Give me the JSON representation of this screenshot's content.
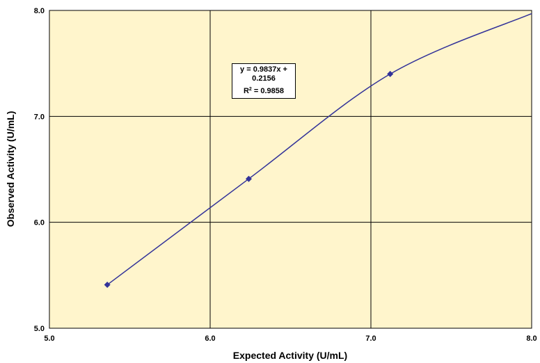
{
  "chart_data": {
    "type": "scatter",
    "title": "",
    "xlabel": "Expected Activity (U/mL)",
    "ylabel": "Observed Activity (U/mL)",
    "xlim": [
      5.0,
      8.0
    ],
    "ylim": [
      5.0,
      8.0
    ],
    "xticks": [
      "5.0",
      "6.0",
      "7.0",
      "8.0"
    ],
    "yticks": [
      "5.0",
      "6.0",
      "7.0",
      "8.0"
    ],
    "grid": true,
    "plot_background": "#FFF5CC",
    "series": [
      {
        "points": [
          {
            "x": 5.36,
            "y": 5.41
          },
          {
            "x": 6.24,
            "y": 6.41
          },
          {
            "x": 7.12,
            "y": 7.4
          }
        ],
        "color": "#333399",
        "marker": "diamond",
        "smoothed_line": true
      }
    ],
    "curve": [
      [
        5.36,
        5.41
      ],
      [
        6.24,
        6.41
      ],
      [
        7.12,
        7.4
      ],
      [
        8.0,
        7.97
      ]
    ],
    "annotation": {
      "equation_line1": "y = 0.9837x +",
      "equation_line2": "0.2156",
      "r2_prefix": "R",
      "r2_sup": "2",
      "r2_value": " = 0.9858"
    }
  }
}
